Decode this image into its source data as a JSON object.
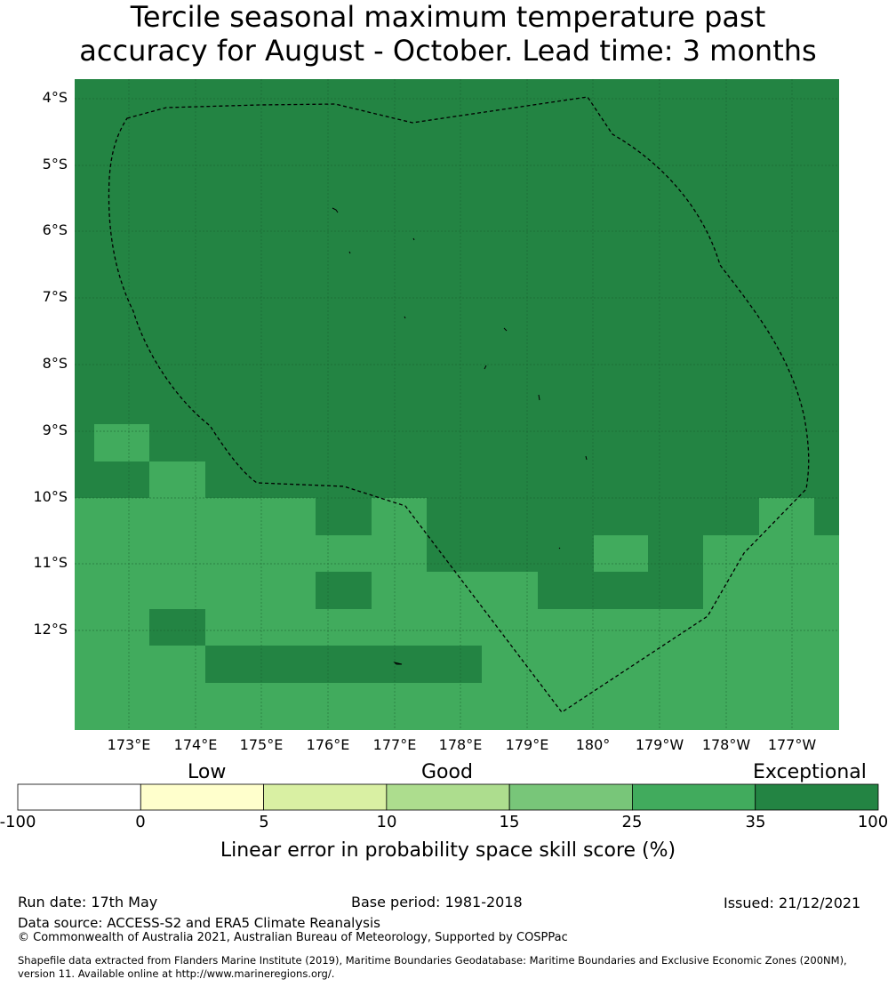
{
  "title_line1": "Tercile seasonal maximum temperature past",
  "title_line2": "accuracy for August - October. Lead time: 3 months",
  "map": {
    "lat_labels": [
      "4°S",
      "5°S",
      "6°S",
      "7°S",
      "8°S",
      "9°S",
      "10°S",
      "11°S",
      "12°S"
    ],
    "lon_labels": [
      "173°E",
      "174°E",
      "175°E",
      "176°E",
      "177°E",
      "178°E",
      "179°E",
      "180°",
      "179°W",
      "178°W",
      "177°W"
    ],
    "colors": {
      "exceptional": "#238443",
      "good_high": "#41ab5d",
      "border": "#000000"
    }
  },
  "colorbar": {
    "category_labels": {
      "low": "Low",
      "good": "Good",
      "exceptional": "Exceptional"
    },
    "ticks": [
      "-100",
      "0",
      "5",
      "10",
      "15",
      "25",
      "35",
      "100"
    ],
    "colors": [
      "#ffffff",
      "#ffffcc",
      "#d9f0a3",
      "#addd8e",
      "#78c679",
      "#41ab5d",
      "#238443"
    ],
    "label": "Linear error in probability space skill score (%)"
  },
  "footer": {
    "run_date": "Run date: 17th May",
    "base_period": "Base period: 1981-2018",
    "issued": "Issued: 21/12/2021",
    "data_source": "Data source: ACCESS-S2 and ERA5 Climate Reanalysis",
    "copyright": "© Commonwealth of Australia 2021, Australian Bureau of Meteorology, Supported by COSPPac",
    "shapefile_line1": "Shapefile data extracted from Flanders Marine Institute (2019), Maritime Boundaries Geodatabase: Maritime Boundaries and Exclusive Economic Zones (200NM),",
    "shapefile_line2": "version 11. Available online at http://www.marineregions.org/."
  }
}
